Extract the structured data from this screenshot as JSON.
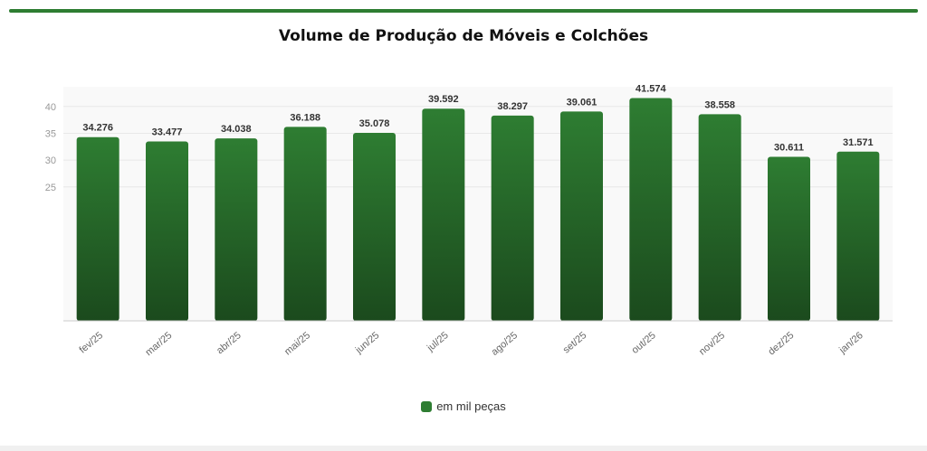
{
  "header": {
    "accent_color": "#2e7d32"
  },
  "chart_data": {
    "type": "bar",
    "title": "Volume de Produção de Móveis e Colchões",
    "categories": [
      "fev/25",
      "mar/25",
      "abr/25",
      "mai/25",
      "jun/25",
      "jul/25",
      "ago/25",
      "set/25",
      "out/25",
      "nov/25",
      "dez/25",
      "jan/26"
    ],
    "series": [
      {
        "name": "em mil peças",
        "values": [
          34.276,
          33.477,
          34.038,
          36.188,
          35.078,
          39.592,
          38.297,
          39.061,
          41.574,
          38.558,
          30.611,
          31.571
        ],
        "value_labels": [
          "34.276",
          "33.477",
          "34.038",
          "36.188",
          "35.078",
          "39.592",
          "38.297",
          "39.061",
          "41.574",
          "38.558",
          "30.611",
          "31.571"
        ]
      }
    ],
    "yticks": [
      25,
      30,
      35,
      40
    ],
    "ylim": [
      0,
      42.5
    ],
    "grid": true,
    "legend_position": "bottom",
    "colors": {
      "bar_top": "#2e7d32",
      "bar_bottom": "#1b4a1d"
    }
  }
}
